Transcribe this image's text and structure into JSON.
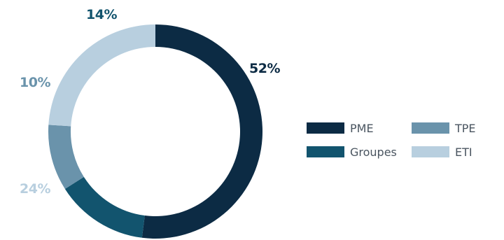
{
  "chart_data": {
    "type": "pie",
    "variant": "donut",
    "title": "",
    "slices": [
      {
        "label": "PME",
        "value": 52,
        "display": "52%",
        "color": "#0c2b44"
      },
      {
        "label": "Groupes",
        "value": 14,
        "display": "14%",
        "color": "#12546e"
      },
      {
        "label": "TPE",
        "value": 10,
        "display": "10%",
        "color": "#6a93ab"
      },
      {
        "label": "ETI",
        "value": 24,
        "display": "24%",
        "color": "#b8cfdf"
      }
    ],
    "legend": {
      "placement": "right",
      "order": [
        "PME",
        "TPE",
        "Groupes",
        "ETI"
      ]
    },
    "label_colors": {
      "PME": "#0c2b44",
      "Groupes": "#12546e",
      "TPE": "#6a93ab",
      "ETI": "#b8cfdf"
    }
  }
}
